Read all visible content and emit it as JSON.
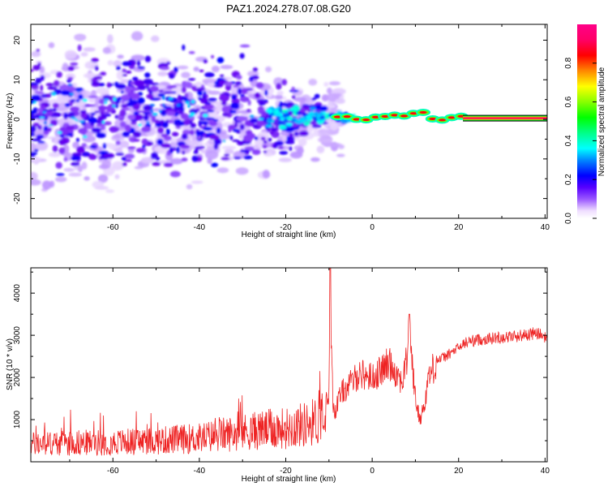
{
  "page_title": "PAZ1.2024.278.07.08.G20",
  "chart_data": [
    {
      "type": "heatmap",
      "title": "PAZ1.2024.278.07.08.G20",
      "xlabel": "Height of straight line (km)",
      "ylabel": "Frequency (Hz)",
      "xlim": [
        -79,
        40.5
      ],
      "ylim": [
        -25,
        24
      ],
      "x_ticks": [
        -60,
        -40,
        -20,
        0,
        20,
        40
      ],
      "y_ticks": [
        -20,
        -10,
        0,
        10,
        20
      ],
      "grid": false,
      "colorbar": {
        "label": "Normalized spectral amplitude",
        "range": [
          0,
          1
        ],
        "ticks": [
          "0.0",
          "0.2",
          "0.4",
          "0.6",
          "0.8"
        ],
        "tick_values": [
          0.0,
          0.2,
          0.4,
          0.6,
          0.8
        ],
        "colormap": [
          "#ffffff",
          "#7700ff",
          "#0000ff",
          "#00ffff",
          "#00ff00",
          "#ffff00",
          "#ff0000",
          "#ff00ff"
        ]
      },
      "features": [
        {
          "name": "scatter_zone",
          "x_range": [
            -79,
            -15
          ],
          "freq_spread_hz": 12,
          "amplitude_range": [
            0.05,
            0.3
          ]
        },
        {
          "name": "converging_zone",
          "x_range": [
            -20,
            -5
          ],
          "freq_spread_hz": 3,
          "amplitude_range": [
            0.2,
            0.5
          ]
        },
        {
          "name": "coherent_band",
          "x_range": [
            -8,
            40.5
          ],
          "freq_center_hz": 0.3,
          "amplitude": 0.95
        }
      ]
    },
    {
      "type": "line",
      "xlabel": "Height of straight line (km)",
      "ylabel": "SNR (10 * v/v)",
      "xlim": [
        -79,
        40.5
      ],
      "ylim": [
        0,
        4600
      ],
      "x_ticks": [
        -60,
        -40,
        -20,
        0,
        20,
        40
      ],
      "y_ticks": [
        1000,
        2000,
        3000,
        4000
      ],
      "grid": false,
      "line_color": "#ee2222",
      "x": [
        -79,
        -70,
        -60,
        -50,
        -40,
        -35,
        -30,
        -25,
        -20,
        -15,
        -12,
        -10,
        -9.8,
        -9.5,
        -9,
        -8.5,
        -8,
        -7,
        -5,
        -3,
        0,
        2,
        4,
        5,
        7,
        8,
        8.5,
        9,
        10,
        11,
        12,
        13,
        15,
        17,
        20,
        22,
        25,
        30,
        35,
        38,
        40.5
      ],
      "y": [
        420,
        450,
        460,
        500,
        560,
        640,
        700,
        760,
        800,
        900,
        1000,
        1200,
        4600,
        2800,
        1300,
        1200,
        1400,
        1650,
        1850,
        2100,
        2000,
        2150,
        2350,
        2200,
        1900,
        2400,
        3500,
        2600,
        1500,
        1000,
        1300,
        2000,
        2400,
        2500,
        2700,
        2850,
        2900,
        2950,
        3000,
        3050,
        2950
      ]
    }
  ]
}
